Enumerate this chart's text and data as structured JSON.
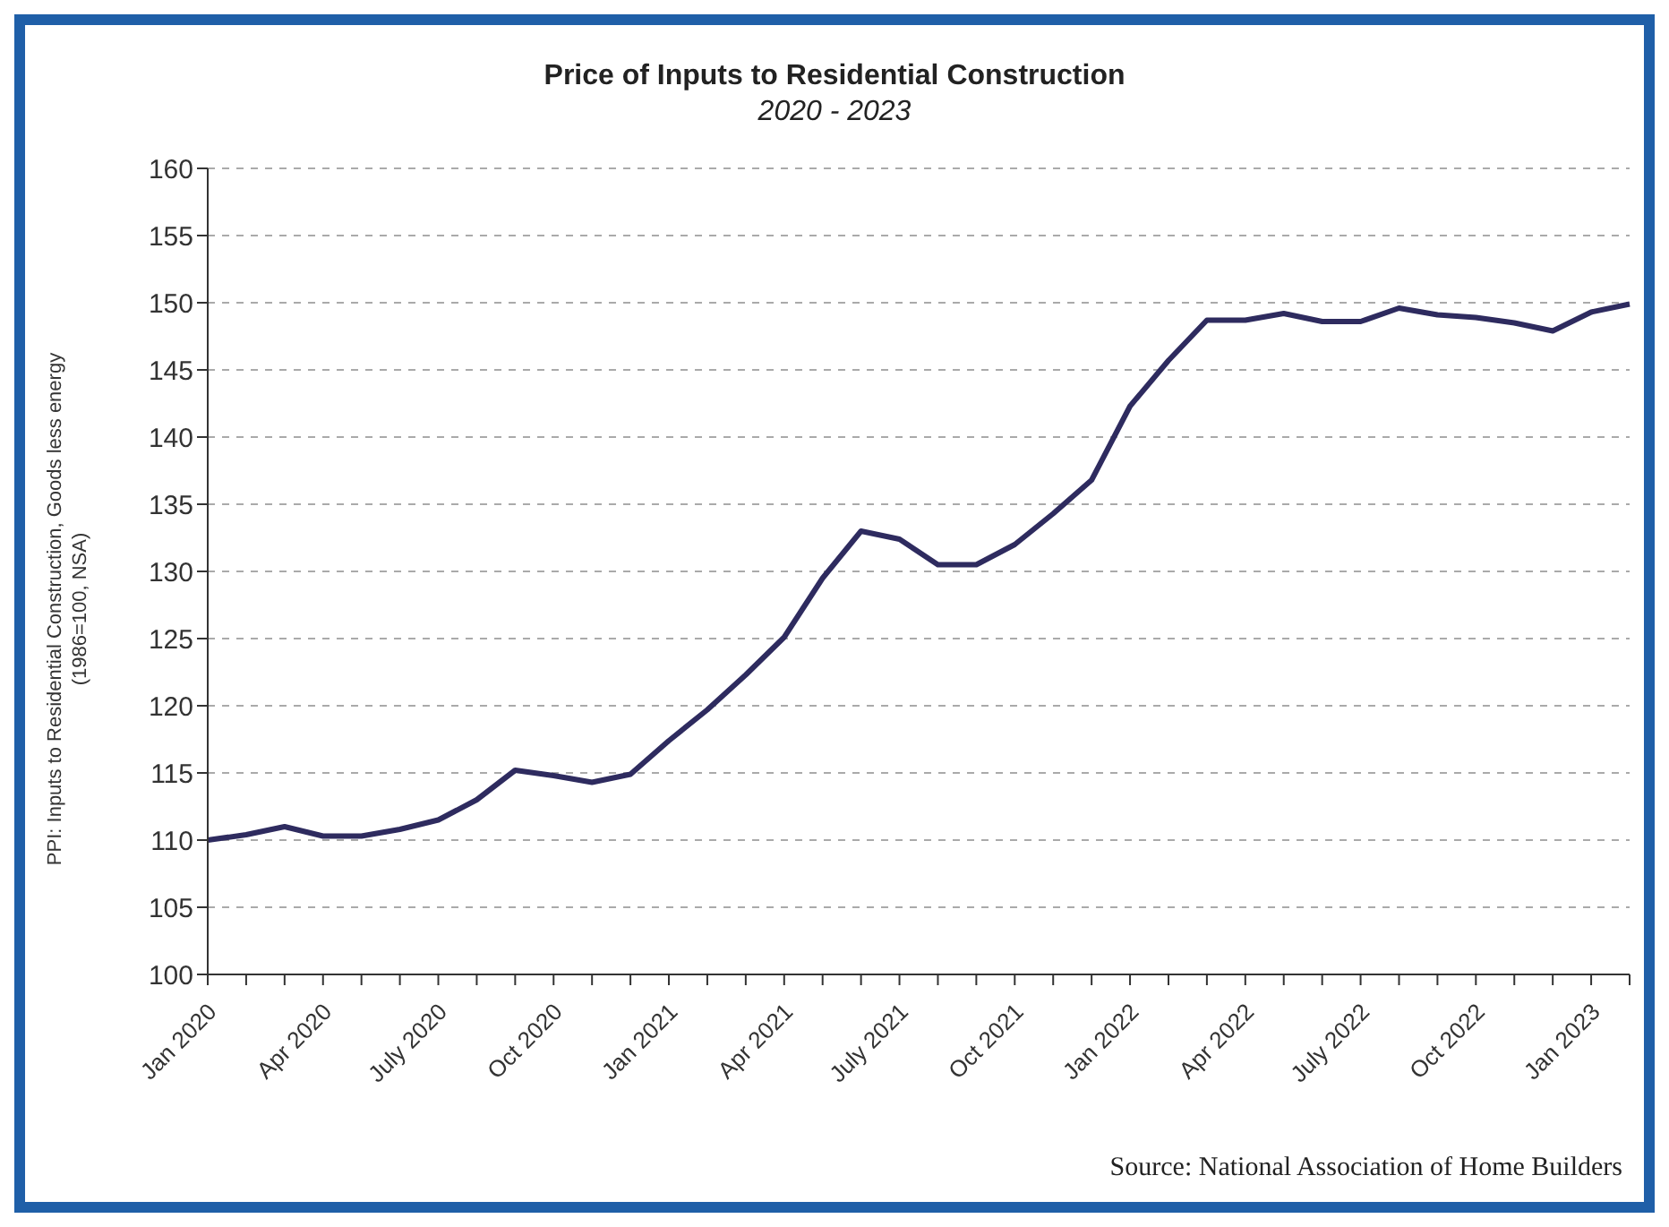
{
  "chart_data": {
    "type": "line",
    "title": "Price of Inputs to Residential Construction",
    "subtitle": "2020 - 2023",
    "ylabel": "PPI: Inputs to Residential Construction, Goods less energy\n(1986=100, NSA)",
    "categories": [
      "Jan 2020",
      null,
      null,
      "Apr 2020",
      null,
      null,
      "July 2020",
      null,
      null,
      "Oct 2020",
      null,
      null,
      "Jan 2021",
      null,
      null,
      "Apr 2021",
      null,
      null,
      "July 2021",
      null,
      null,
      "Oct 2021",
      null,
      null,
      "Jan 2022",
      null,
      null,
      "Apr 2022",
      null,
      null,
      "July 2022",
      null,
      null,
      "Oct 2022",
      null,
      null,
      "Jan 2023",
      null
    ],
    "series": [
      {
        "color": "#2e2b5f",
        "values": [
          110.0,
          110.4,
          111.0,
          110.3,
          110.3,
          110.8,
          111.5,
          113.0,
          115.2,
          114.8,
          114.3,
          114.9,
          117.4,
          119.7,
          122.3,
          125.1,
          129.5,
          133.0,
          132.4,
          130.5,
          130.5,
          132.0,
          134.3,
          136.8,
          142.3,
          145.7,
          148.7,
          148.7,
          149.2,
          148.6,
          148.6,
          149.6,
          149.1,
          148.9,
          148.5,
          147.9,
          149.3,
          149.9
        ]
      }
    ],
    "ylim": [
      100,
      160
    ],
    "yticks": [
      100,
      105,
      110,
      115,
      120,
      125,
      130,
      135,
      140,
      145,
      150,
      155,
      160
    ],
    "grid": "y",
    "marker": "none",
    "line_style": "solid",
    "annotations": [
      "Source: National Association of Home Builders"
    ]
  }
}
